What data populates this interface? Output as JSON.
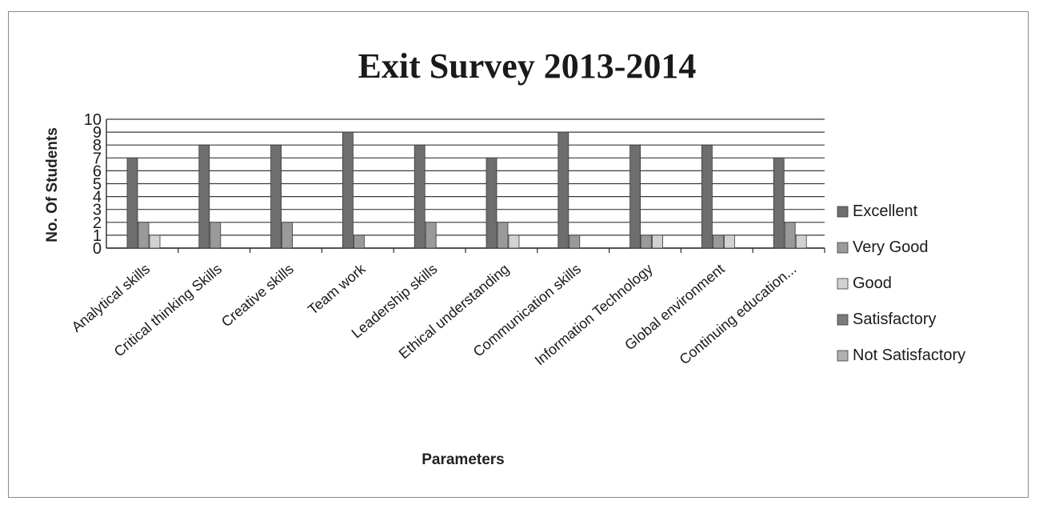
{
  "chart_data": {
    "type": "bar",
    "title": "Exit Survey 2013-2014",
    "xlabel": "Parameters",
    "ylabel": "No. Of Students",
    "ylim": [
      0,
      10
    ],
    "yticks": [
      0,
      1,
      2,
      3,
      4,
      5,
      6,
      7,
      8,
      9,
      10
    ],
    "grid": true,
    "legend_position": "right",
    "categories": [
      "Analytical skills",
      "Critical thinking Skills",
      "Creative skills",
      "Team work",
      "Leadership skills",
      "Ethical understanding",
      "Communication skills",
      "Information Technology",
      "Global environment",
      "Continuing education..."
    ],
    "series": [
      {
        "name": "Excellent",
        "color": "#6e6e6e",
        "values": [
          7,
          8,
          8,
          9,
          8,
          7,
          9,
          8,
          8,
          7
        ]
      },
      {
        "name": "Very Good",
        "color": "#9a9a9a",
        "values": [
          2,
          2,
          2,
          1,
          2,
          2,
          1,
          1,
          1,
          2
        ]
      },
      {
        "name": "Good",
        "color": "#d2d2d2",
        "values": [
          1,
          0,
          0,
          0,
          0,
          1,
          0,
          1,
          1,
          1
        ]
      },
      {
        "name": "Satisfactory",
        "color": "#7a7a7a",
        "values": [
          0,
          0,
          0,
          0,
          0,
          0,
          0,
          0,
          0,
          0
        ]
      },
      {
        "name": "Not Satisfactory",
        "color": "#b0b0b0",
        "values": [
          0,
          0,
          0,
          0,
          0,
          0,
          0,
          0,
          0,
          0
        ]
      }
    ]
  }
}
